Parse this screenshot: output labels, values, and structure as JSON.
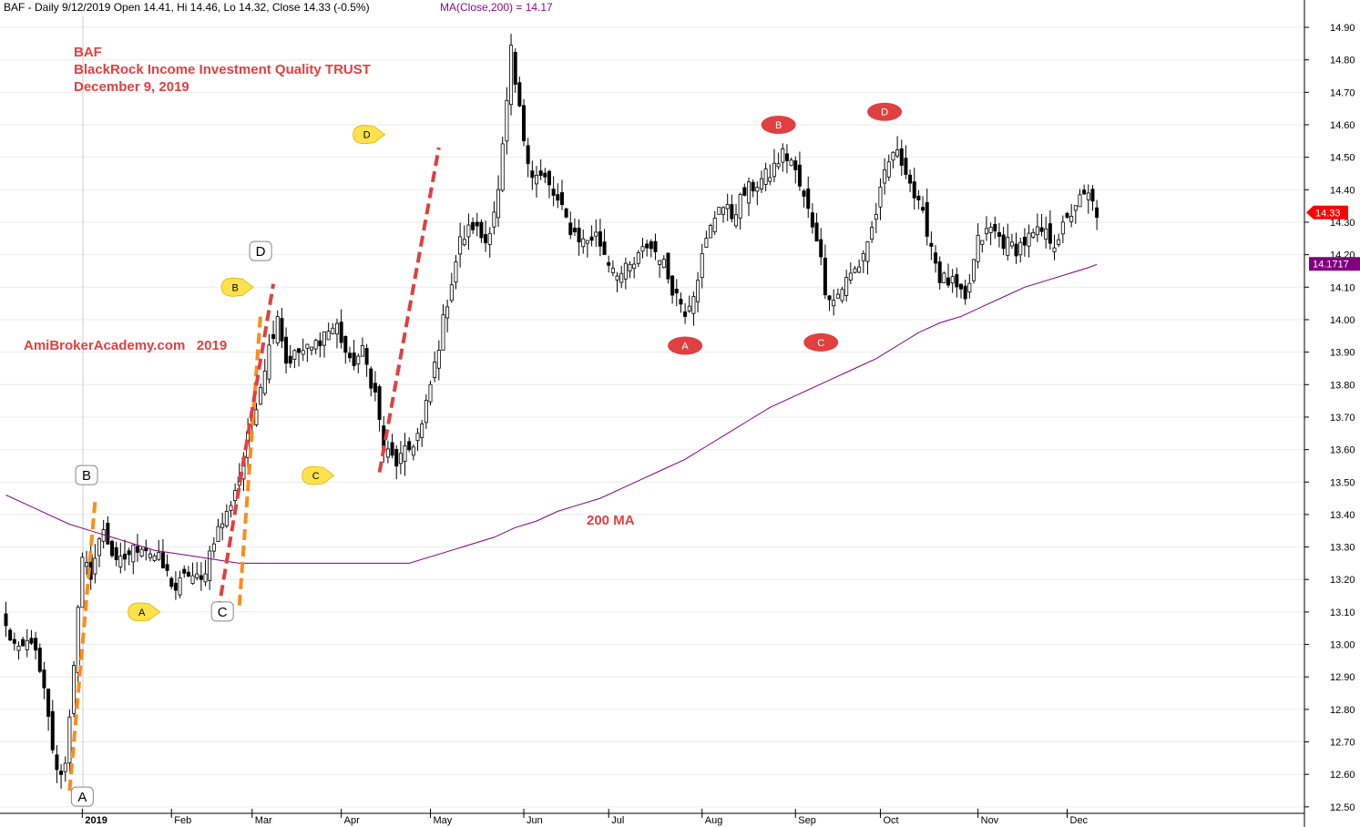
{
  "header": {
    "ticker_line": "BAF - Daily 9/12/2019 Open 14.41, Hi 14.46, Lo 14.32, Close 14.33 (-0.5%)",
    "ma_line": "MA(Close,200) = 14.17"
  },
  "annotations": {
    "title1": "BAF",
    "title2": "BlackRock Income Investment Quality TRUST",
    "title3": "December 9, 2019",
    "watermark": "AmiBrokerAcademy.com   2019",
    "ma_label": "200 MA"
  },
  "colors": {
    "up_candle": "#ffffff",
    "down_candle": "#000000",
    "ma_line": "#800080",
    "annotation_red": "#e04040",
    "orange_dash": "#ff8c1a",
    "red_dash": "#e04040",
    "yellow_marker": "#ffe14d",
    "red_marker": "#e04040",
    "last_price_tag": "#ff0000",
    "ma_tag": "#800080"
  },
  "chart_data": {
    "type": "candlestick",
    "ylim": [
      12.48,
      14.98
    ],
    "yticks": [
      "12.50",
      "12.60",
      "12.70",
      "12.80",
      "12.90",
      "13.00",
      "13.10",
      "13.20",
      "13.30",
      "13.40",
      "13.50",
      "13.60",
      "13.70",
      "13.80",
      "13.90",
      "14.00",
      "14.10",
      "14.20",
      "14.30",
      "14.40",
      "14.50",
      "14.60",
      "14.70",
      "14.80",
      "14.90"
    ],
    "months": [
      {
        "label": "2019",
        "day": 18,
        "bold": true
      },
      {
        "label": "Feb",
        "day": 39
      },
      {
        "label": "Mar",
        "day": 58
      },
      {
        "label": "Apr",
        "day": 79
      },
      {
        "label": "May",
        "day": 100
      },
      {
        "label": "Jun",
        "day": 122
      },
      {
        "label": "Jul",
        "day": 142
      },
      {
        "label": "Aug",
        "day": 164
      },
      {
        "label": "Sep",
        "day": 186
      },
      {
        "label": "Oct",
        "day": 206
      },
      {
        "label": "Nov",
        "day": 229
      },
      {
        "label": "Dec",
        "day": 250
      }
    ],
    "close_anchors": [
      [
        0,
        13.05
      ],
      [
        3,
        12.97
      ],
      [
        6,
        13.02
      ],
      [
        9,
        12.85
      ],
      [
        12,
        12.6
      ],
      [
        14,
        12.63
      ],
      [
        16,
        12.95
      ],
      [
        18,
        13.25
      ],
      [
        20,
        13.22
      ],
      [
        23,
        13.36
      ],
      [
        26,
        13.24
      ],
      [
        29,
        13.28
      ],
      [
        32,
        13.31
      ],
      [
        36,
        13.26
      ],
      [
        40,
        13.17
      ],
      [
        43,
        13.22
      ],
      [
        46,
        13.19
      ],
      [
        49,
        13.33
      ],
      [
        52,
        13.4
      ],
      [
        55,
        13.52
      ],
      [
        58,
        13.69
      ],
      [
        61,
        13.86
      ],
      [
        64,
        14.02
      ],
      [
        66,
        13.87
      ],
      [
        69,
        13.9
      ],
      [
        72,
        13.91
      ],
      [
        75,
        13.96
      ],
      [
        78,
        13.98
      ],
      [
        81,
        13.86
      ],
      [
        84,
        13.9
      ],
      [
        87,
        13.77
      ],
      [
        89,
        13.6
      ],
      [
        92,
        13.56
      ],
      [
        95,
        13.6
      ],
      [
        98,
        13.67
      ],
      [
        101,
        13.86
      ],
      [
        104,
        14.06
      ],
      [
        107,
        14.24
      ],
      [
        110,
        14.29
      ],
      [
        113,
        14.24
      ],
      [
        116,
        14.39
      ],
      [
        118,
        14.66
      ],
      [
        119,
        14.82
      ],
      [
        120,
        14.72
      ],
      [
        122,
        14.56
      ],
      [
        124,
        14.45
      ],
      [
        127,
        14.43
      ],
      [
        130,
        14.36
      ],
      [
        133,
        14.28
      ],
      [
        136,
        14.24
      ],
      [
        139,
        14.26
      ],
      [
        142,
        14.18
      ],
      [
        145,
        14.14
      ],
      [
        148,
        14.17
      ],
      [
        151,
        14.23
      ],
      [
        154,
        14.2
      ],
      [
        157,
        14.1
      ],
      [
        160,
        14.03
      ],
      [
        162,
        14.09
      ],
      [
        165,
        14.24
      ],
      [
        168,
        14.36
      ],
      [
        171,
        14.32
      ],
      [
        174,
        14.39
      ],
      [
        177,
        14.42
      ],
      [
        180,
        14.45
      ],
      [
        183,
        14.51
      ],
      [
        185,
        14.49
      ],
      [
        188,
        14.37
      ],
      [
        191,
        14.26
      ],
      [
        193,
        14.1
      ],
      [
        195,
        14.06
      ],
      [
        198,
        14.12
      ],
      [
        201,
        14.17
      ],
      [
        204,
        14.28
      ],
      [
        207,
        14.44
      ],
      [
        209,
        14.52
      ],
      [
        212,
        14.47
      ],
      [
        214,
        14.38
      ],
      [
        217,
        14.28
      ],
      [
        220,
        14.13
      ],
      [
        223,
        14.11
      ],
      [
        226,
        14.05
      ],
      [
        229,
        14.24
      ],
      [
        232,
        14.28
      ],
      [
        235,
        14.24
      ],
      [
        238,
        14.22
      ],
      [
        241,
        14.25
      ],
      [
        244,
        14.27
      ],
      [
        247,
        14.24
      ],
      [
        250,
        14.3
      ],
      [
        252,
        14.36
      ],
      [
        255,
        14.38
      ],
      [
        257,
        14.33
      ]
    ],
    "ma_curve": [
      [
        0,
        13.46
      ],
      [
        5,
        13.43
      ],
      [
        10,
        13.4
      ],
      [
        15,
        13.37
      ],
      [
        20,
        13.35
      ],
      [
        25,
        13.33
      ],
      [
        30,
        13.31
      ],
      [
        35,
        13.29
      ],
      [
        40,
        13.28
      ],
      [
        45,
        13.27
      ],
      [
        50,
        13.26
      ],
      [
        55,
        13.25
      ],
      [
        60,
        13.25
      ],
      [
        65,
        13.25
      ],
      [
        70,
        13.25
      ],
      [
        75,
        13.25
      ],
      [
        80,
        13.25
      ],
      [
        85,
        13.25
      ],
      [
        90,
        13.25
      ],
      [
        95,
        13.25
      ],
      [
        100,
        13.27
      ],
      [
        105,
        13.29
      ],
      [
        110,
        13.31
      ],
      [
        115,
        13.33
      ],
      [
        120,
        13.36
      ],
      [
        125,
        13.38
      ],
      [
        130,
        13.41
      ],
      [
        135,
        13.43
      ],
      [
        140,
        13.45
      ],
      [
        145,
        13.48
      ],
      [
        150,
        13.51
      ],
      [
        155,
        13.54
      ],
      [
        160,
        13.57
      ],
      [
        165,
        13.61
      ],
      [
        170,
        13.65
      ],
      [
        175,
        13.69
      ],
      [
        180,
        13.73
      ],
      [
        185,
        13.76
      ],
      [
        190,
        13.79
      ],
      [
        195,
        13.82
      ],
      [
        200,
        13.85
      ],
      [
        205,
        13.88
      ],
      [
        210,
        13.92
      ],
      [
        215,
        13.96
      ],
      [
        220,
        13.99
      ],
      [
        225,
        14.01
      ],
      [
        230,
        14.04
      ],
      [
        235,
        14.07
      ],
      [
        240,
        14.1
      ],
      [
        245,
        14.12
      ],
      [
        250,
        14.14
      ],
      [
        255,
        14.16
      ],
      [
        257,
        14.17
      ]
    ],
    "last_price": "14.33",
    "ma_value": "14.1717",
    "ma_value_num": 14.1717,
    "wave_labels": [
      {
        "text": "A",
        "style": "white",
        "day": 18,
        "price": 12.53
      },
      {
        "text": "B",
        "style": "white",
        "day": 19,
        "price": 13.52
      },
      {
        "text": "A",
        "style": "yellow",
        "day": 32,
        "price": 13.1
      },
      {
        "text": "C",
        "style": "white",
        "day": 51,
        "price": 13.1
      },
      {
        "text": "B",
        "style": "yellow",
        "day": 54,
        "price": 14.1
      },
      {
        "text": "D",
        "style": "white",
        "day": 60,
        "price": 14.21
      },
      {
        "text": "C",
        "style": "yellow",
        "day": 73,
        "price": 13.52
      },
      {
        "text": "D",
        "style": "yellow",
        "day": 85,
        "price": 14.57
      },
      {
        "text": "A",
        "style": "red",
        "day": 160,
        "price": 13.92
      },
      {
        "text": "B",
        "style": "red",
        "day": 182,
        "price": 14.6
      },
      {
        "text": "C",
        "style": "red",
        "day": 192,
        "price": 13.93
      },
      {
        "text": "D",
        "style": "red",
        "day": 207,
        "price": 14.64
      }
    ],
    "trend_lines": [
      {
        "color": "orange",
        "from": [
          15,
          12.55
        ],
        "to": [
          21,
          13.44
        ]
      },
      {
        "color": "orange",
        "from": [
          55,
          13.12
        ],
        "to": [
          60,
          14.02
        ]
      },
      {
        "color": "red",
        "from": [
          50,
          13.1
        ],
        "to": [
          63,
          14.11
        ]
      },
      {
        "color": "red",
        "from": [
          88,
          13.53
        ],
        "to": [
          102,
          14.53
        ]
      }
    ]
  }
}
